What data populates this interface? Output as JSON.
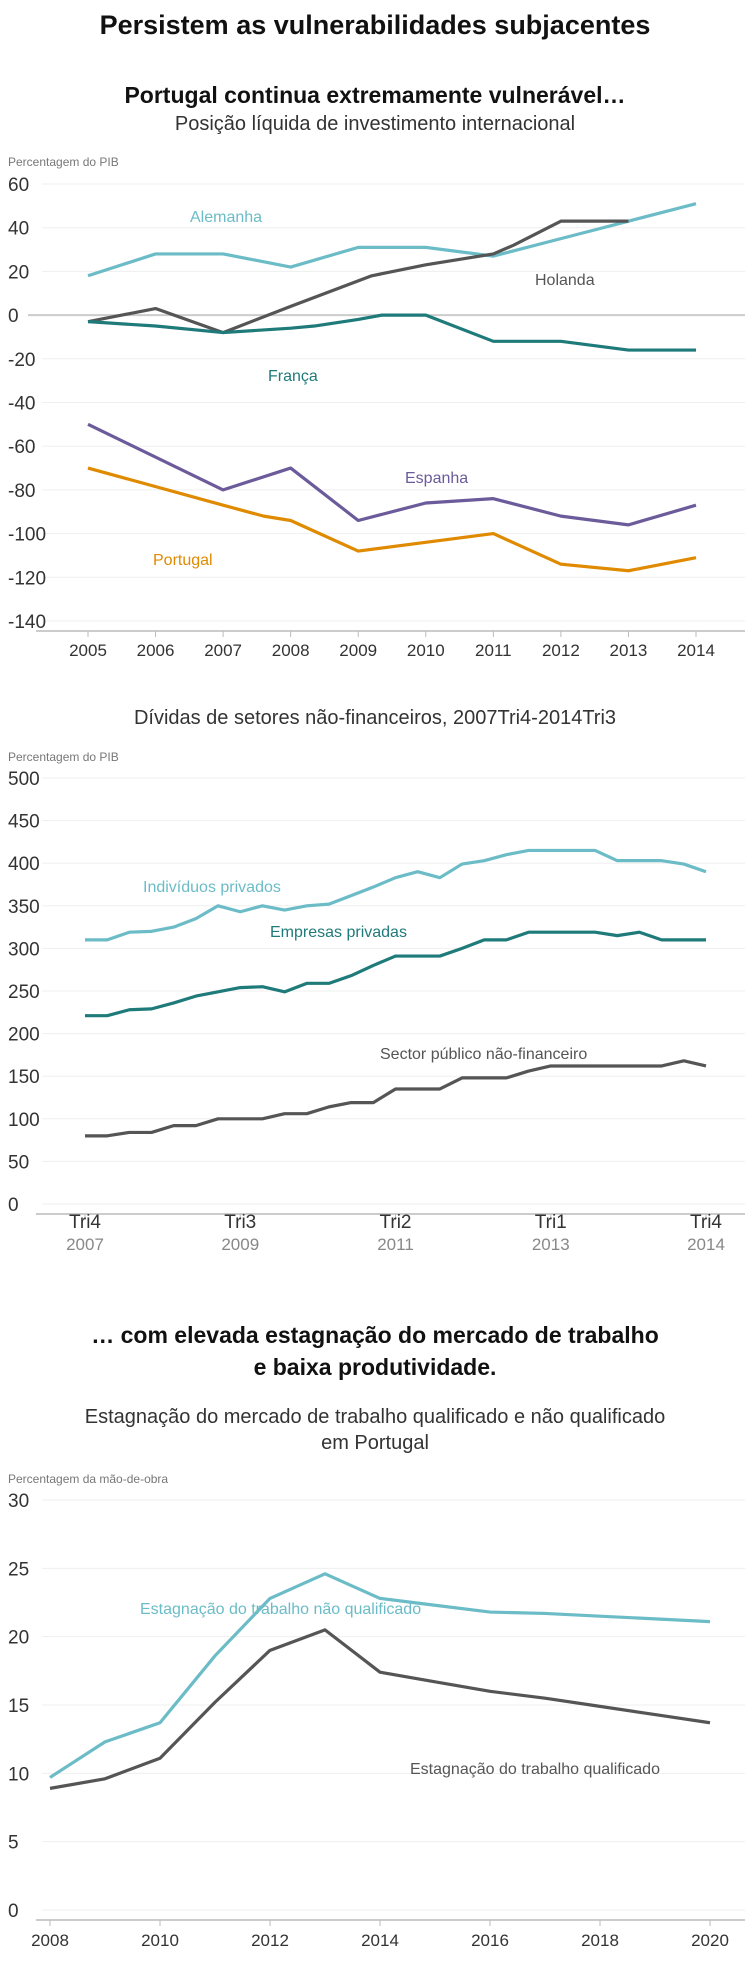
{
  "title": "Persistem as vulnerabilidades subjacentes",
  "section1": {
    "heading": "Portugal continua extremamente vulnerável…"
  },
  "section2": {
    "heading_line1": "… com elevada estagnação do mercado de trabalho",
    "heading_line2": "e baixa produtividade."
  },
  "chart_data": [
    {
      "type": "line",
      "title": "Posição líquida de investimento internacional",
      "ylabel": "Percentagem do PIB",
      "ylim": [
        -140,
        60
      ],
      "yticks": [
        60,
        40,
        20,
        0,
        -20,
        -40,
        -60,
        -80,
        -100,
        -120,
        -140
      ],
      "xlim": [
        2005,
        2014
      ],
      "xticks": [
        "2005",
        "2006",
        "2007",
        "2008",
        "2009",
        "2010",
        "2011",
        "2012",
        "2013",
        "2014"
      ],
      "grid": true,
      "series": [
        {
          "name": "Alemanha",
          "color": "#6bbcc7",
          "points": [
            [
              2005,
              18
            ],
            [
              2006,
              28
            ],
            [
              2007,
              28
            ],
            [
              2008,
              22
            ],
            [
              2009,
              31
            ],
            [
              2010,
              31
            ],
            [
              2011,
              27
            ],
            [
              2012,
              35
            ],
            [
              2013,
              43
            ],
            [
              2014,
              51
            ]
          ]
        },
        {
          "name": "Holanda",
          "color": "#555555",
          "points": [
            [
              2005,
              -3
            ],
            [
              2006,
              3
            ],
            [
              2007,
              -8
            ],
            [
              2008,
              4
            ],
            [
              2009.2,
              18
            ],
            [
              2010,
              23
            ],
            [
              2011,
              28
            ],
            [
              2011.3,
              32
            ],
            [
              2012,
              43
            ],
            [
              2013,
              43
            ]
          ]
        },
        {
          "name": "França",
          "color": "#1f7a7a",
          "points": [
            [
              2005,
              -3
            ],
            [
              2006,
              -5
            ],
            [
              2007,
              -8
            ],
            [
              2008,
              -6
            ],
            [
              2008.35,
              -5
            ],
            [
              2009,
              -2
            ],
            [
              2009.35,
              0
            ],
            [
              2010,
              0
            ],
            [
              2011,
              -12
            ],
            [
              2012,
              -12
            ],
            [
              2013,
              -16
            ],
            [
              2014,
              -16
            ]
          ]
        },
        {
          "name": "Espanha",
          "color": "#6b5b9a",
          "points": [
            [
              2005,
              -50
            ],
            [
              2007,
              -80
            ],
            [
              2008,
              -70
            ],
            [
              2009,
              -94
            ],
            [
              2010,
              -86
            ],
            [
              2011,
              -84
            ],
            [
              2012,
              -92
            ],
            [
              2013,
              -96
            ],
            [
              2014,
              -87
            ]
          ]
        },
        {
          "name": "Portugal",
          "color": "#e08a00",
          "points": [
            [
              2005,
              -70
            ],
            [
              2007,
              -87
            ],
            [
              2007.6,
              -92
            ],
            [
              2008,
              -94
            ],
            [
              2009,
              -108
            ],
            [
              2010,
              -104
            ],
            [
              2011,
              -100
            ],
            [
              2012,
              -114
            ],
            [
              2013,
              -117
            ],
            [
              2014,
              -111
            ]
          ]
        }
      ]
    },
    {
      "type": "line",
      "title": "Dívidas de setores não-financeiros, 2007Tri4-2014Tri3",
      "ylabel": "Percentagem do PIB",
      "ylim": [
        0,
        500
      ],
      "yticks": [
        500,
        450,
        400,
        350,
        300,
        250,
        200,
        150,
        100,
        50,
        0
      ],
      "xticks": [
        {
          "quarter": "Tri4",
          "year": "2007",
          "index": 0
        },
        {
          "quarter": "Tri3",
          "year": "2009",
          "index": 7
        },
        {
          "quarter": "Tri2",
          "year": "2011",
          "index": 14
        },
        {
          "quarter": "Tri1",
          "year": "2013",
          "index": 21
        },
        {
          "quarter": "Tri4",
          "year": "2014",
          "index": 28
        }
      ],
      "grid": true,
      "series": [
        {
          "name": "Indivíduos privados",
          "color": "#6bbcc7",
          "values": [
            310,
            310,
            319,
            320,
            325,
            335,
            350,
            343,
            350,
            345,
            350,
            352,
            362,
            372,
            383,
            390,
            383,
            399,
            403,
            410,
            415,
            415,
            415,
            415,
            403,
            403,
            403,
            399,
            390
          ]
        },
        {
          "name": "Empresas privadas",
          "color": "#1f7a7a",
          "values": [
            221,
            221,
            228,
            229,
            236,
            244,
            249,
            254,
            255,
            249,
            259,
            259,
            268,
            280,
            291,
            291,
            291,
            300,
            310,
            310,
            319,
            319,
            319,
            319,
            315,
            319,
            310,
            310,
            310
          ]
        },
        {
          "name": "Sector público não-financeiro",
          "color": "#555555",
          "values": [
            80,
            80,
            84,
            84,
            92,
            92,
            100,
            100,
            100,
            106,
            106,
            114,
            119,
            119,
            135,
            135,
            135,
            148,
            148,
            148,
            156,
            162,
            162,
            162,
            162,
            162,
            162,
            168,
            162
          ]
        }
      ]
    },
    {
      "type": "line",
      "title_line1": "Estagnação do mercado de trabalho qualificado e não qualificado",
      "title_line2": "em Portugal",
      "ylabel": "Percentagem da mão-de-obra",
      "ylim": [
        0,
        30
      ],
      "yticks": [
        30,
        25,
        20,
        15,
        10,
        5,
        0
      ],
      "xlim": [
        2008,
        2020
      ],
      "xticks": [
        "2008",
        "2010",
        "2012",
        "2014",
        "2016",
        "2018",
        "2020"
      ],
      "grid": true,
      "series": [
        {
          "name": "Estagnação do trabalho não qualificado",
          "color": "#6bbcc7",
          "points": [
            [
              2008,
              9.7
            ],
            [
              2009,
              12.3
            ],
            [
              2010,
              13.7
            ],
            [
              2011,
              18.6
            ],
            [
              2012,
              22.8
            ],
            [
              2013,
              24.6
            ],
            [
              2014,
              22.8
            ],
            [
              2015,
              22.3
            ],
            [
              2016,
              21.8
            ],
            [
              2017,
              21.7
            ],
            [
              2018,
              21.5
            ],
            [
              2019,
              21.3
            ],
            [
              2020,
              21.1
            ]
          ]
        },
        {
          "name": "Estagnação do trabalho qualificado",
          "color": "#555555",
          "points": [
            [
              2008,
              8.9
            ],
            [
              2009,
              9.6
            ],
            [
              2010,
              11.1
            ],
            [
              2011,
              15.2
            ],
            [
              2012,
              19.0
            ],
            [
              2013,
              20.5
            ],
            [
              2014,
              17.4
            ],
            [
              2015,
              16.7
            ],
            [
              2016,
              16.0
            ],
            [
              2017,
              15.5
            ],
            [
              2018,
              14.9
            ],
            [
              2019,
              14.3
            ],
            [
              2020,
              13.7
            ]
          ]
        }
      ]
    }
  ]
}
